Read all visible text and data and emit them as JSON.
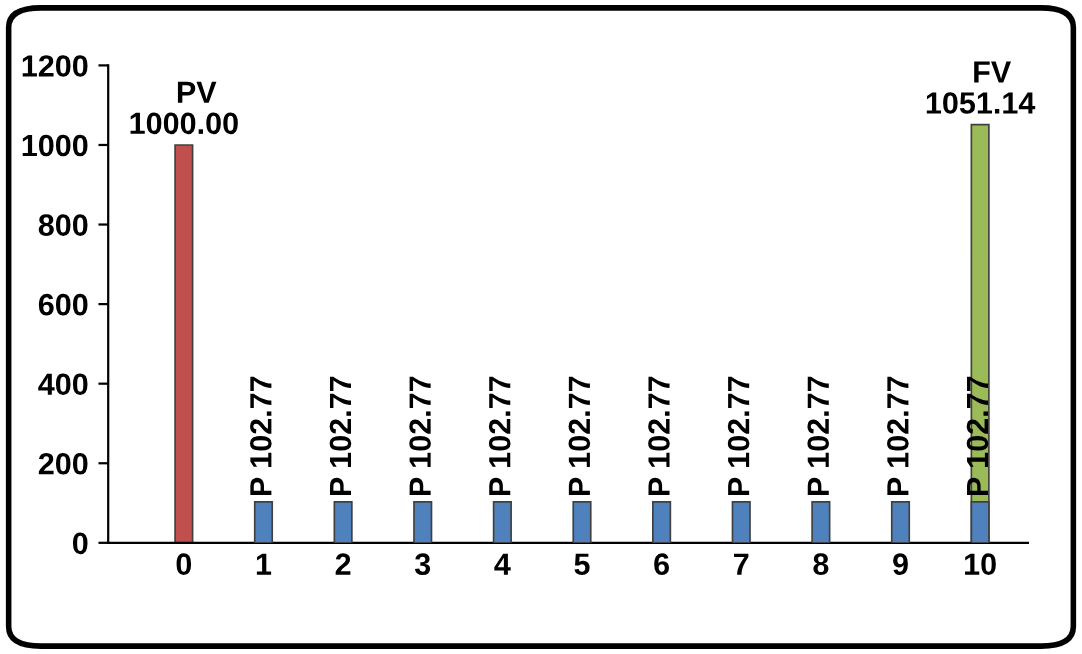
{
  "chart_data": {
    "type": "bar",
    "categories": [
      "0",
      "1",
      "2",
      "3",
      "4",
      "5",
      "6",
      "7",
      "8",
      "9",
      "10"
    ],
    "series": [
      {
        "colors": [
          "#c0504d",
          null,
          null,
          null,
          null,
          null,
          null,
          null,
          null,
          null,
          "#9bbb59"
        ],
        "values": [
          1000.0,
          null,
          null,
          null,
          null,
          null,
          null,
          null,
          null,
          null,
          1051.14
        ],
        "value_labels": [
          "1000.00",
          null,
          null,
          null,
          null,
          null,
          null,
          null,
          null,
          null,
          "1051.14"
        ]
      },
      {
        "color": "#4f81bd",
        "values": [
          null,
          102.77,
          102.77,
          102.77,
          102.77,
          102.77,
          102.77,
          102.77,
          102.77,
          102.77,
          102.77
        ],
        "value_labels": [
          null,
          "P 102.77",
          "P 102.77",
          "P 102.77",
          "P 102.77",
          "P 102.77",
          "P 102.77",
          "P 102.77",
          "P 102.77",
          "P 102.77",
          "P 102.77"
        ]
      }
    ],
    "annotations": [
      {
        "text": "PV",
        "x": "0",
        "y": 1000.0
      },
      {
        "text": "FV",
        "x": "10",
        "y": 1051.14
      }
    ],
    "ylim": [
      0,
      1200
    ],
    "yticks": [
      0,
      200,
      400,
      600,
      800,
      1000,
      1200
    ],
    "grid": false,
    "legend": false
  }
}
